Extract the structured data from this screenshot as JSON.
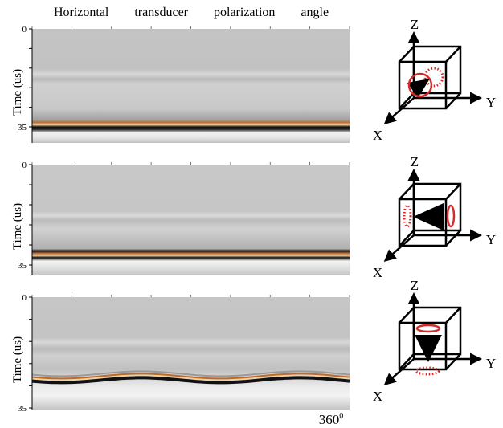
{
  "header": {
    "title": "Horizontal transducer polarization angle"
  },
  "panels": [
    {
      "y_label": "Time (us)",
      "y_ticks": [
        0,
        35
      ],
      "axes": {
        "z": "Z",
        "y": "Y",
        "x": "X"
      }
    },
    {
      "y_label": "Time (us)",
      "y_ticks": [
        0,
        35
      ],
      "axes": {
        "z": "Z",
        "y": "Y",
        "x": "X"
      }
    },
    {
      "y_label": "Time (us)",
      "y_ticks": [
        0,
        35
      ],
      "axes": {
        "z": "Z",
        "y": "Y",
        "x": "X"
      }
    }
  ],
  "footer": {
    "x_end": "360",
    "x_end_sup": "0"
  }
}
